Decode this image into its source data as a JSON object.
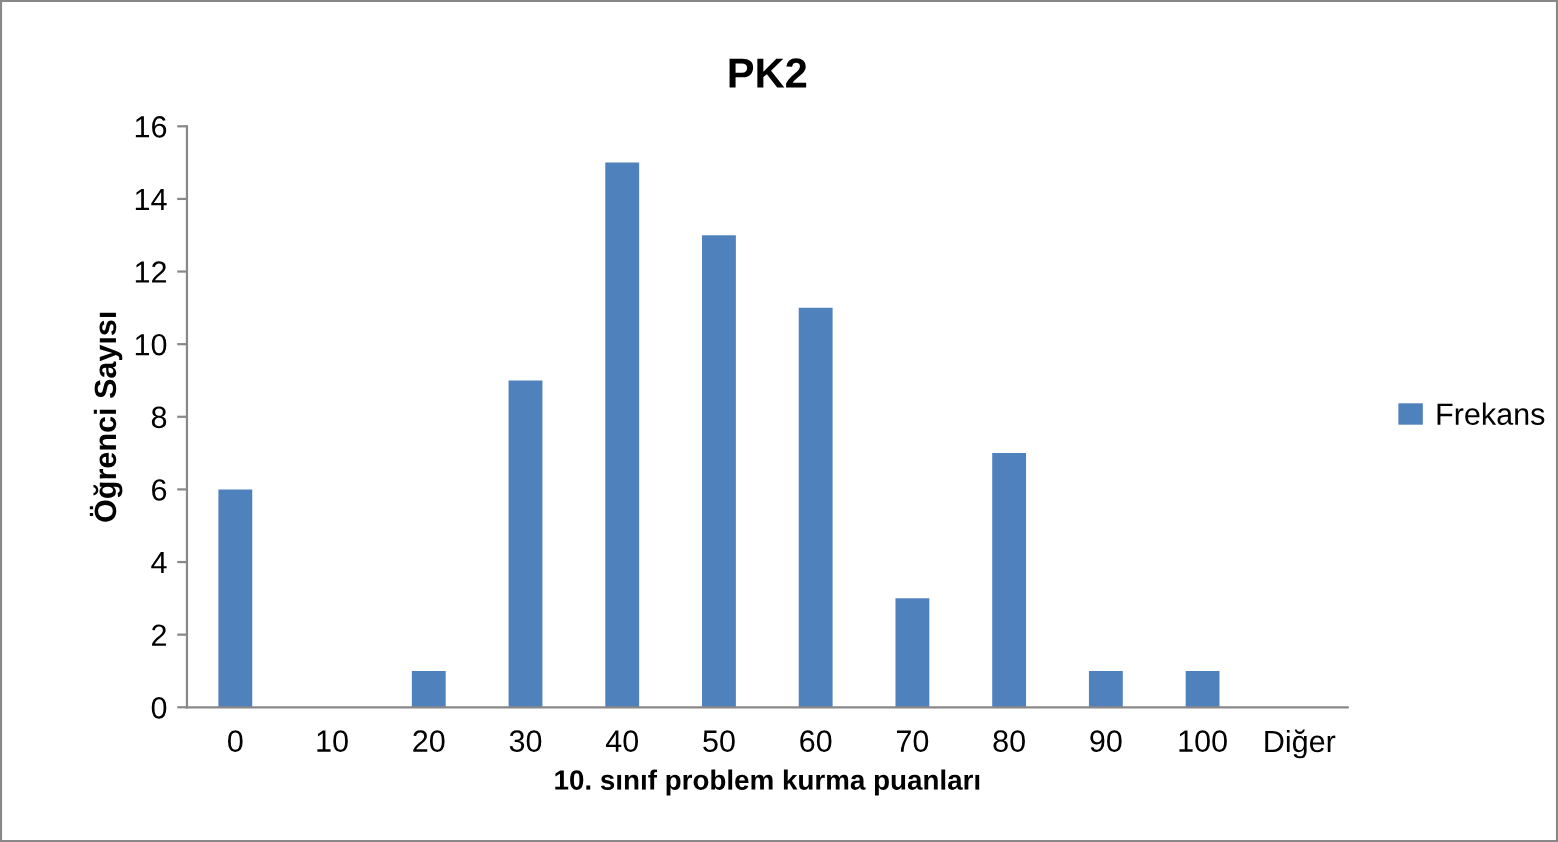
{
  "chart_data": {
    "type": "bar",
    "title": "PK2",
    "xlabel": "10. sınıf problem kurma puanları",
    "ylabel": "Öğrenci Sayısı",
    "categories": [
      "0",
      "10",
      "20",
      "30",
      "40",
      "50",
      "60",
      "70",
      "80",
      "90",
      "100",
      "Diğer"
    ],
    "series": [
      {
        "name": "Frekans",
        "color": "#4f81bd",
        "values": [
          6,
          0,
          1,
          9,
          15,
          13,
          11,
          3,
          7,
          1,
          1,
          0
        ]
      }
    ],
    "ylim": [
      0,
      16
    ],
    "yticks": [
      0,
      2,
      4,
      6,
      8,
      10,
      12,
      14,
      16
    ],
    "grid": false,
    "legend": "right"
  }
}
